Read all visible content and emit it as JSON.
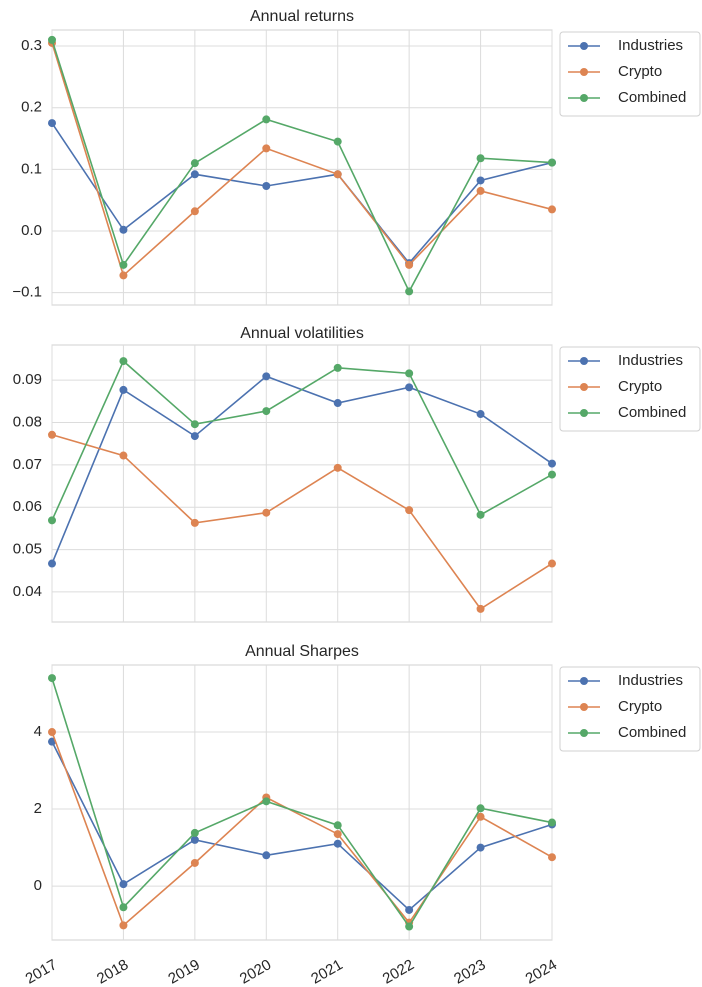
{
  "chart_data": [
    {
      "type": "line",
      "title": "Annual returns",
      "ylim": [
        -0.12,
        0.326
      ],
      "yticks": [
        {
          "value": -0.1,
          "label": "−0.1"
        },
        {
          "value": 0,
          "label": "0.0"
        },
        0.1,
        0.2,
        0.3
      ],
      "grid": true,
      "legend": "outside-right",
      "series": [
        {
          "name": "Industries",
          "color": "#4c72b0",
          "values": [
            0.175,
            0.002,
            0.092,
            0.073,
            0.092,
            -0.052,
            0.082,
            0.111
          ]
        },
        {
          "name": "Crypto",
          "color": "#dd8452",
          "values": [
            0.305,
            -0.072,
            0.032,
            0.134,
            0.092,
            -0.055,
            0.065,
            0.035
          ]
        },
        {
          "name": "Combined",
          "color": "#55a868",
          "values": [
            0.31,
            -0.055,
            0.11,
            0.181,
            0.145,
            -0.098,
            0.118,
            0.111
          ]
        }
      ]
    },
    {
      "type": "line",
      "title": "Annual volatilities",
      "ylim": [
        0.0329,
        0.0983
      ],
      "yticks": [
        0.04,
        0.05,
        0.06,
        0.07,
        0.08,
        0.09
      ],
      "grid": true,
      "legend": "outside-right",
      "series": [
        {
          "name": "Industries",
          "color": "#4c72b0",
          "values": [
            0.0467,
            0.0877,
            0.0768,
            0.0909,
            0.0846,
            0.0883,
            0.082,
            0.0703
          ]
        },
        {
          "name": "Crypto",
          "color": "#dd8452",
          "values": [
            0.0771,
            0.0722,
            0.0563,
            0.0587,
            0.0693,
            0.0593,
            0.036,
            0.0467
          ]
        },
        {
          "name": "Combined",
          "color": "#55a868",
          "values": [
            0.0569,
            0.0945,
            0.0796,
            0.0827,
            0.0929,
            0.0916,
            0.0582,
            0.0677
          ]
        }
      ]
    },
    {
      "type": "line",
      "title": "Annual Sharpes",
      "ylim": [
        -1.4,
        5.74
      ],
      "yticks": [
        0,
        2,
        4
      ],
      "categories": [
        "2017",
        "2018",
        "2019",
        "2020",
        "2021",
        "2022",
        "2023",
        "2024"
      ],
      "grid": true,
      "legend": "outside-right",
      "series": [
        {
          "name": "Industries",
          "color": "#4c72b0",
          "values": [
            3.75,
            0.05,
            1.2,
            0.8,
            1.1,
            -0.62,
            1.0,
            1.6
          ]
        },
        {
          "name": "Crypto",
          "color": "#dd8452",
          "values": [
            4.0,
            -1.02,
            0.6,
            2.3,
            1.35,
            -0.95,
            1.8,
            0.75
          ]
        },
        {
          "name": "Combined",
          "color": "#55a868",
          "values": [
            5.4,
            -0.55,
            1.38,
            2.2,
            1.58,
            -1.05,
            2.02,
            1.65
          ]
        }
      ]
    }
  ]
}
